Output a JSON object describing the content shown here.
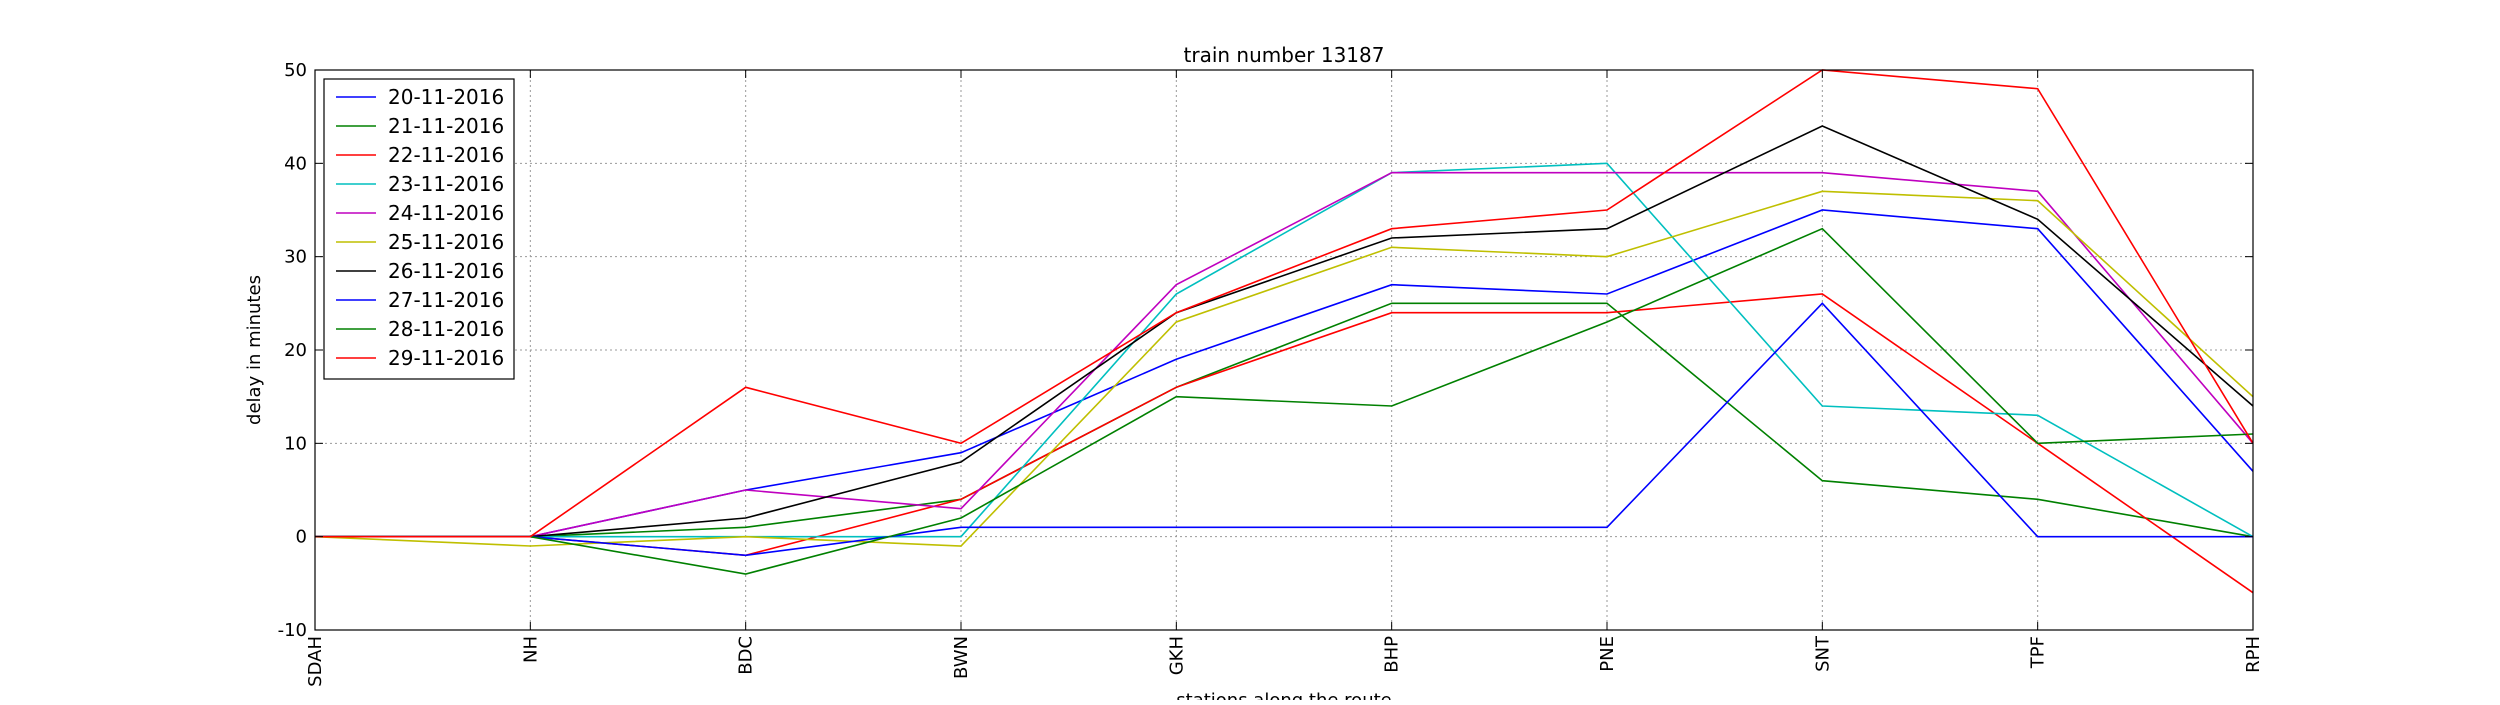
{
  "chart_data": {
    "type": "line",
    "title": "train number 13187",
    "xlabel": "stations along the route",
    "ylabel": "delay in minutes",
    "categories": [
      "SDAH",
      "NH",
      "BDC",
      "BWN",
      "GKH",
      "BHP",
      "PNE",
      "SNT",
      "TPF",
      "RPH"
    ],
    "ylim": [
      -10,
      50
    ],
    "yticks": [
      -10,
      0,
      10,
      20,
      30,
      40,
      50
    ],
    "grid": true,
    "legend_position": "upper-left",
    "series": [
      {
        "name": "20-11-2016",
        "color": "#0000ff",
        "values": [
          0,
          0,
          5,
          9,
          19,
          27,
          26,
          35,
          33,
          7
        ]
      },
      {
        "name": "21-11-2016",
        "color": "#008000",
        "values": [
          0,
          0,
          1,
          4,
          16,
          25,
          25,
          6,
          4,
          0
        ]
      },
      {
        "name": "22-11-2016",
        "color": "#ff0000",
        "values": [
          0,
          0,
          -2,
          4,
          16,
          24,
          24,
          26,
          10,
          -6
        ]
      },
      {
        "name": "23-11-2016",
        "color": "#00bfbf",
        "values": [
          0,
          0,
          0,
          0,
          26,
          39,
          40,
          14,
          13,
          0
        ]
      },
      {
        "name": "24-11-2016",
        "color": "#bf00bf",
        "values": [
          0,
          0,
          5,
          3,
          27,
          39,
          39,
          39,
          37,
          10
        ]
      },
      {
        "name": "25-11-2016",
        "color": "#bfbf00",
        "values": [
          0,
          -1,
          0,
          -1,
          23,
          31,
          30,
          37,
          36,
          15
        ]
      },
      {
        "name": "26-11-2016",
        "color": "#000000",
        "values": [
          0,
          0,
          2,
          8,
          24,
          32,
          33,
          44,
          34,
          14
        ]
      },
      {
        "name": "27-11-2016",
        "color": "#0000ff",
        "values": [
          0,
          0,
          -2,
          1,
          1,
          1,
          1,
          25,
          0,
          0
        ]
      },
      {
        "name": "28-11-2016",
        "color": "#008000",
        "values": [
          0,
          0,
          -4,
          2,
          15,
          14,
          23,
          33,
          10,
          11
        ]
      },
      {
        "name": "29-11-2016",
        "color": "#ff0000",
        "values": [
          0,
          0,
          16,
          10,
          24,
          33,
          35,
          50,
          48,
          10
        ]
      }
    ]
  }
}
